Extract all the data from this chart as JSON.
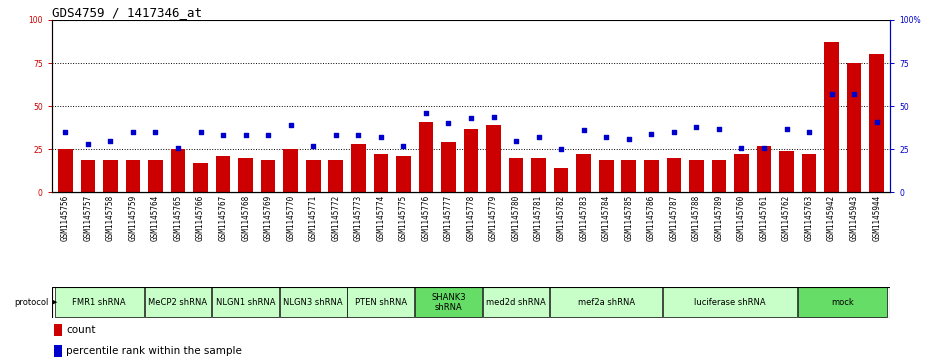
{
  "title": "GDS4759 / 1417346_at",
  "samples": [
    "GSM1145756",
    "GSM1145757",
    "GSM1145758",
    "GSM1145759",
    "GSM1145764",
    "GSM1145765",
    "GSM1145766",
    "GSM1145767",
    "GSM1145768",
    "GSM1145769",
    "GSM1145770",
    "GSM1145771",
    "GSM1145772",
    "GSM1145773",
    "GSM1145774",
    "GSM1145775",
    "GSM1145776",
    "GSM1145777",
    "GSM1145778",
    "GSM1145779",
    "GSM1145780",
    "GSM1145781",
    "GSM1145782",
    "GSM1145783",
    "GSM1145784",
    "GSM1145785",
    "GSM1145786",
    "GSM1145787",
    "GSM1145788",
    "GSM1145789",
    "GSM1145760",
    "GSM1145761",
    "GSM1145762",
    "GSM1145763",
    "GSM1145942",
    "GSM1145943",
    "GSM1145944"
  ],
  "counts": [
    25,
    19,
    19,
    19,
    19,
    25,
    17,
    21,
    20,
    19,
    25,
    19,
    19,
    28,
    22,
    21,
    41,
    29,
    37,
    39,
    20,
    20,
    14,
    22,
    19,
    19,
    19,
    20,
    19,
    19,
    22,
    27,
    24,
    22,
    87,
    75,
    80
  ],
  "percentiles": [
    35,
    28,
    30,
    35,
    35,
    26,
    35,
    33,
    33,
    33,
    39,
    27,
    33,
    33,
    32,
    27,
    46,
    40,
    43,
    44,
    30,
    32,
    25,
    36,
    32,
    31,
    34,
    35,
    38,
    37,
    26,
    26,
    37,
    35,
    57,
    57,
    41
  ],
  "protocols": [
    {
      "label": "FMR1 shRNA",
      "start": 0,
      "end": 3,
      "color": "#c8ffc8"
    },
    {
      "label": "MeCP2 shRNA",
      "start": 4,
      "end": 6,
      "color": "#c8ffc8"
    },
    {
      "label": "NLGN1 shRNA",
      "start": 7,
      "end": 9,
      "color": "#c8ffc8"
    },
    {
      "label": "NLGN3 shRNA",
      "start": 10,
      "end": 12,
      "color": "#c8ffc8"
    },
    {
      "label": "PTEN shRNA",
      "start": 13,
      "end": 15,
      "color": "#c8ffc8"
    },
    {
      "label": "SHANK3\nshRNA",
      "start": 16,
      "end": 18,
      "color": "#66dd66"
    },
    {
      "label": "med2d shRNA",
      "start": 19,
      "end": 21,
      "color": "#c8ffc8"
    },
    {
      "label": "mef2a shRNA",
      "start": 22,
      "end": 26,
      "color": "#c8ffc8"
    },
    {
      "label": "luciferase shRNA",
      "start": 27,
      "end": 32,
      "color": "#c8ffc8"
    },
    {
      "label": "mock",
      "start": 33,
      "end": 36,
      "color": "#66dd66"
    }
  ],
  "bar_color": "#cc0000",
  "dot_color": "#0000cc",
  "bg_color": "#ffffff",
  "plot_bg": "#ffffff",
  "tick_area_bg": "#cccccc",
  "ylim_left": [
    0,
    100
  ],
  "ylim_right": [
    0,
    100
  ],
  "yticks_left": [
    0,
    25,
    50,
    75,
    100
  ],
  "yticks_right": [
    0,
    25,
    50,
    75,
    100
  ],
  "grid_levels": [
    25,
    50,
    75
  ],
  "title_fontsize": 9,
  "tick_fontsize": 5.5,
  "protocol_fontsize": 6,
  "legend_fontsize": 7.5
}
